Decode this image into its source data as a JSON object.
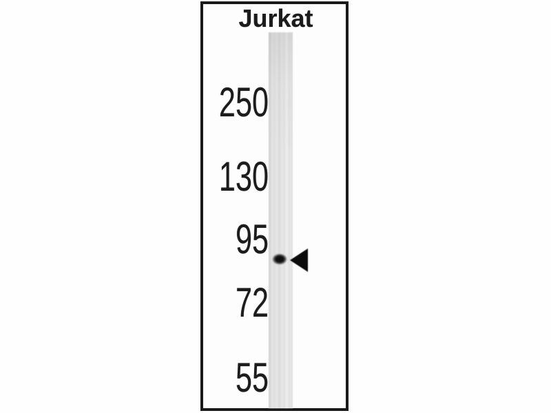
{
  "blot": {
    "lane_label": "Jurkat",
    "markers": [
      "250",
      "130",
      "95",
      "72",
      "55"
    ],
    "band": {
      "lane": "Jurkat",
      "location": "single dark band just below the 95 marker, between 95 and 72",
      "indicator_icon": "band-arrow-icon"
    },
    "colors": {
      "background": "#ffffff",
      "frame_border": "#191919",
      "label_text": "#1c1c1c",
      "lane_fill": "#e3e3e3",
      "band_fill": "#101010",
      "arrow_fill": "#0b0b0b"
    }
  }
}
